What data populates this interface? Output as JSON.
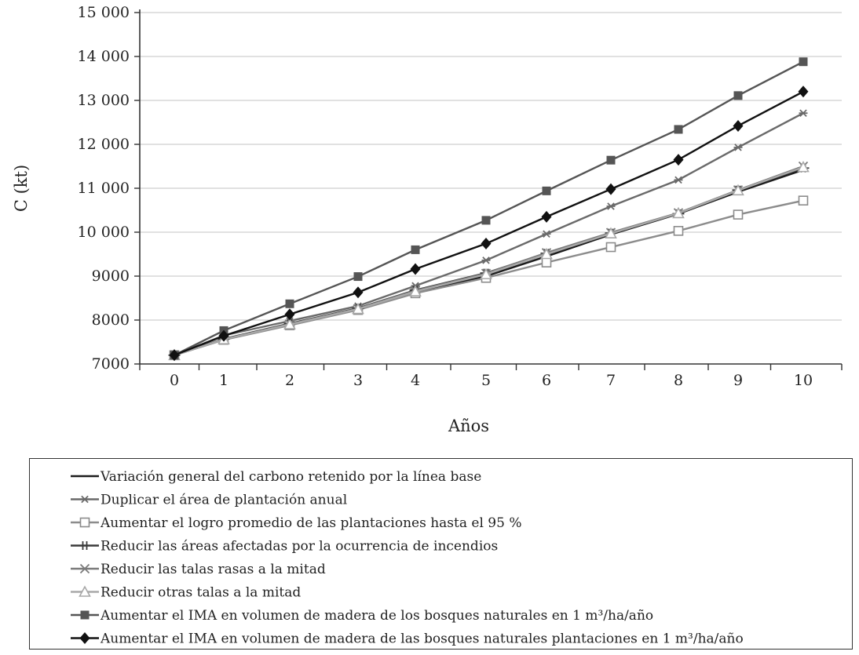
{
  "chart_data": {
    "type": "line",
    "xlabel": "Años",
    "ylabel": "C (kt)",
    "x": [
      0,
      1,
      2,
      3,
      4,
      5,
      6,
      7,
      8,
      9,
      10
    ],
    "x_tick_labels": [
      "0",
      "1",
      "2",
      "3",
      "4",
      "5",
      "6",
      "7",
      "8",
      "9",
      "10"
    ],
    "ylim": [
      7000,
      15000
    ],
    "y_ticks": [
      7000,
      8000,
      9000,
      10000,
      11000,
      12000,
      13000,
      14000,
      15000
    ],
    "y_tick_labels": [
      "7000",
      "8000",
      "9000",
      "10 000",
      "11 000",
      "12 000",
      "13 000",
      "14 000",
      "15 000"
    ],
    "grid": "horizontal",
    "legend_position": "bottom",
    "series": [
      {
        "name": "Variación general del carbono retenido por la línea base",
        "marker": "none",
        "color": "#1c1c1c",
        "values": [
          7200,
          7560,
          7900,
          8250,
          8640,
          9000,
          9450,
          9950,
          10420,
          10920,
          11420
        ]
      },
      {
        "name": "Duplicar el área de plantación anual",
        "marker": "asterisk",
        "color": "#6a6a6a",
        "values": [
          7200,
          7650,
          7980,
          8320,
          8780,
          9360,
          9960,
          10590,
          11190,
          11930,
          12710
        ]
      },
      {
        "name": "Aumentar el logro promedio de las plantaciones hasta el 95 %",
        "marker": "square-open",
        "color": "#8c8c8c",
        "values": [
          7200,
          7550,
          7880,
          8230,
          8610,
          8960,
          9310,
          9660,
          10030,
          10400,
          10720
        ]
      },
      {
        "name": "Reducir las áreas afectadas por la ocurrencia de incendios",
        "marker": "double-cross",
        "color": "#3a3a3a",
        "values": [
          7200,
          7570,
          7920,
          8270,
          8680,
          9070,
          9520,
          9980,
          10420,
          10960,
          11460
        ]
      },
      {
        "name": "Reducir las talas rasas a la mitad",
        "marker": "cross",
        "color": "#7a7a7a",
        "values": [
          7200,
          7560,
          7910,
          8260,
          8670,
          9060,
          9530,
          9990,
          10440,
          10960,
          11500
        ]
      },
      {
        "name": "Reducir otras talas a la mitad",
        "marker": "triangle-open",
        "color": "#a8a8a8",
        "values": [
          7200,
          7560,
          7900,
          8250,
          8650,
          9040,
          9500,
          9970,
          10430,
          10950,
          11480
        ]
      },
      {
        "name": "Aumentar el IMA en volumen de madera de los bosques naturales en 1 m³/ha/año",
        "marker": "square-filled",
        "color": "#555555",
        "values": [
          7200,
          7760,
          8370,
          8990,
          9600,
          10270,
          10940,
          11640,
          12340,
          13110,
          13880
        ]
      },
      {
        "name": "Aumentar el IMA en volumen de madera de las bosques naturales plantaciones en 1 m³/ha/año",
        "marker": "diamond-filled",
        "color": "#111111",
        "values": [
          7200,
          7640,
          8130,
          8630,
          9160,
          9740,
          10350,
          10980,
          11650,
          12420,
          13200
        ]
      }
    ]
  }
}
